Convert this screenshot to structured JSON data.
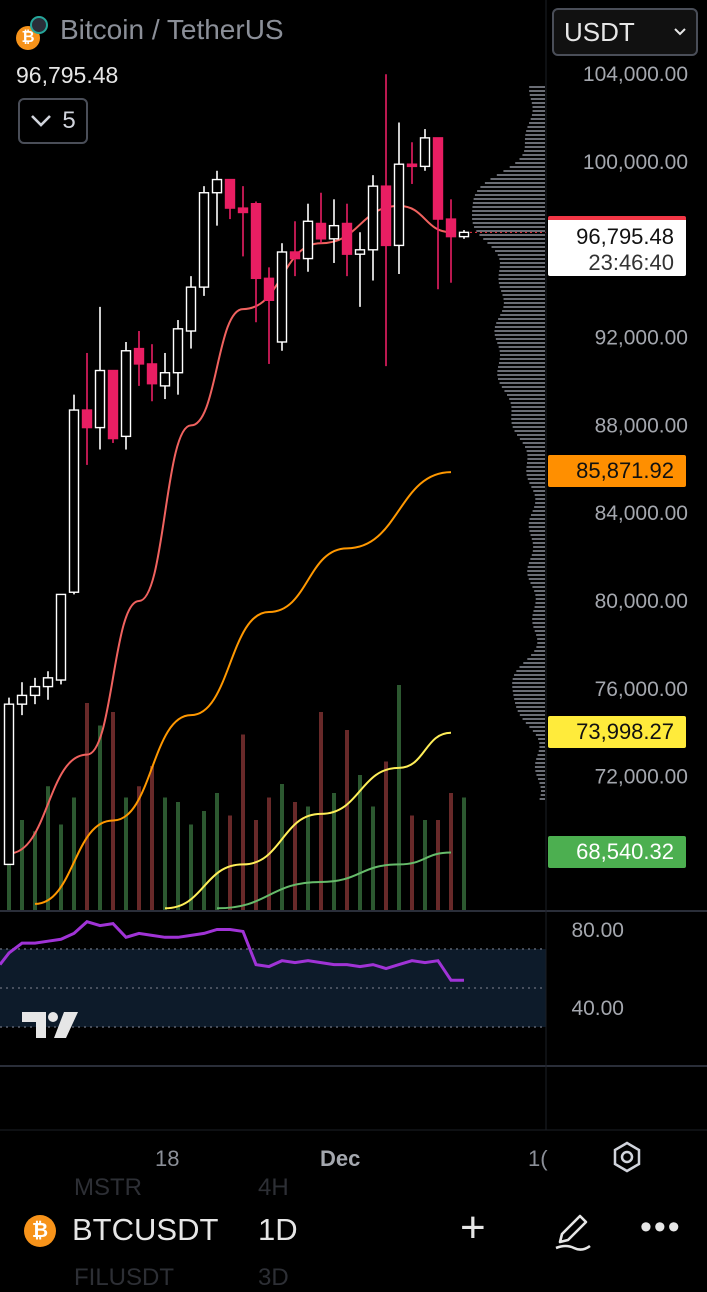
{
  "header": {
    "title": "Bitcoin / TetherUS",
    "last_price": "96,795.48",
    "collapse_count": "5",
    "currency": "USDT"
  },
  "price_tags": {
    "last": "96,795.48",
    "countdown": "23:46:40",
    "orange": "85,871.92",
    "yellow": "73,998.27",
    "green": "68,540.32"
  },
  "price_axis": {
    "ticks": [
      "104,000.00",
      "100,000.00",
      "92,000.00",
      "88,000.00",
      "84,000.00",
      "80,000.00",
      "76,000.00",
      "72,000.00"
    ]
  },
  "rsi_axis": {
    "ticks": [
      "80.00",
      "40.00"
    ]
  },
  "time_axis": {
    "labels": [
      "18",
      "Dec",
      "1("
    ]
  },
  "bottom_bar": {
    "symbol": "BTCUSDT",
    "interval": "1D",
    "ghost_symbol_1": "MSTR",
    "ghost_interval_1": "4H",
    "ghost_symbol_2": "FILUSDT",
    "ghost_interval_2": "3D"
  },
  "logo_text": "17",
  "colors": {
    "up": "#ffffff",
    "down": "#e91e63",
    "ma_red": "#f0625f",
    "ma_orange": "#ff9800",
    "ma_yellow": "#ffee58",
    "ma_green": "#66bb6a",
    "rsi": "#a033d6"
  },
  "chart_data": {
    "type": "candlestick",
    "interval": "1D",
    "ylim": [
      66000,
      104500
    ],
    "candles": [
      {
        "o": 68000,
        "h": 75600,
        "l": 68000,
        "c": 75300
      },
      {
        "o": 75300,
        "h": 76300,
        "l": 74800,
        "c": 75700
      },
      {
        "o": 75700,
        "h": 76500,
        "l": 75300,
        "c": 76100
      },
      {
        "o": 76100,
        "h": 76800,
        "l": 75500,
        "c": 76500
      },
      {
        "o": 76400,
        "h": 80300,
        "l": 76200,
        "c": 80300
      },
      {
        "o": 80400,
        "h": 89400,
        "l": 80300,
        "c": 88700
      },
      {
        "o": 88700,
        "h": 91300,
        "l": 86200,
        "c": 87900
      },
      {
        "o": 87900,
        "h": 93400,
        "l": 86900,
        "c": 90500
      },
      {
        "o": 90500,
        "h": 90500,
        "l": 87200,
        "c": 87400
      },
      {
        "o": 87500,
        "h": 91800,
        "l": 86900,
        "c": 91400
      },
      {
        "o": 91500,
        "h": 92300,
        "l": 89800,
        "c": 90800
      },
      {
        "o": 90800,
        "h": 91700,
        "l": 89100,
        "c": 89900
      },
      {
        "o": 89800,
        "h": 91300,
        "l": 89200,
        "c": 90400
      },
      {
        "o": 90400,
        "h": 92800,
        "l": 89400,
        "c": 92400
      },
      {
        "o": 92300,
        "h": 94800,
        "l": 91500,
        "c": 94300
      },
      {
        "o": 94300,
        "h": 98900,
        "l": 93900,
        "c": 98600
      },
      {
        "o": 98600,
        "h": 99600,
        "l": 97100,
        "c": 99200
      },
      {
        "o": 99200,
        "h": 99200,
        "l": 97400,
        "c": 97900
      },
      {
        "o": 97900,
        "h": 98900,
        "l": 95700,
        "c": 97700
      },
      {
        "o": 98100,
        "h": 98200,
        "l": 92700,
        "c": 94700
      },
      {
        "o": 94700,
        "h": 95200,
        "l": 90800,
        "c": 93700
      },
      {
        "o": 91800,
        "h": 96300,
        "l": 91400,
        "c": 95900
      },
      {
        "o": 95900,
        "h": 97300,
        "l": 94800,
        "c": 95600
      },
      {
        "o": 95600,
        "h": 98100,
        "l": 95000,
        "c": 97300
      },
      {
        "o": 97200,
        "h": 98600,
        "l": 96300,
        "c": 96500
      },
      {
        "o": 96500,
        "h": 98300,
        "l": 95400,
        "c": 97100
      },
      {
        "o": 97200,
        "h": 98100,
        "l": 94800,
        "c": 95800
      },
      {
        "o": 95800,
        "h": 96800,
        "l": 93400,
        "c": 96000
      },
      {
        "o": 96000,
        "h": 99400,
        "l": 94600,
        "c": 98900
      },
      {
        "o": 98900,
        "h": 104000,
        "l": 90700,
        "c": 96200
      },
      {
        "o": 96200,
        "h": 101800,
        "l": 94900,
        "c": 99900
      },
      {
        "o": 99900,
        "h": 100900,
        "l": 99000,
        "c": 99800
      },
      {
        "o": 99800,
        "h": 101500,
        "l": 99600,
        "c": 101100
      },
      {
        "o": 101100,
        "h": 101100,
        "l": 94200,
        "c": 97400
      },
      {
        "o": 97400,
        "h": 98300,
        "l": 94500,
        "c": 96600
      },
      {
        "o": 96600,
        "h": 96900,
        "l": 96500,
        "c": 96795.48
      }
    ],
    "volumes": [
      30,
      40,
      35,
      55,
      38,
      50,
      92,
      82,
      88,
      50,
      55,
      64,
      50,
      48,
      38,
      44,
      52,
      42,
      78,
      40,
      50,
      56,
      48,
      46,
      88,
      52,
      80,
      60,
      46,
      66,
      100,
      42,
      40,
      40,
      52,
      50
    ],
    "rsi": [
      68,
      73,
      73,
      74,
      75,
      78,
      84,
      82,
      83,
      76,
      78,
      77,
      76,
      76,
      77,
      78,
      80,
      80,
      79,
      62,
      61,
      64,
      63,
      64,
      63,
      62,
      62,
      61,
      62,
      60,
      62,
      64,
      63,
      64,
      54,
      54
    ],
    "indicators": [
      {
        "name": "ma_red",
        "points": [
          [
            0,
            68500
          ],
          [
            6,
            73000
          ],
          [
            10,
            80000
          ],
          [
            14,
            88000
          ],
          [
            18,
            93300
          ],
          [
            24,
            96300
          ],
          [
            30,
            98000
          ],
          [
            34,
            96800
          ]
        ]
      },
      {
        "name": "ma_orange",
        "points": [
          [
            2,
            66200
          ],
          [
            8,
            70000
          ],
          [
            14,
            74800
          ],
          [
            20,
            79500
          ],
          [
            26,
            82400
          ],
          [
            34,
            85872
          ]
        ]
      },
      {
        "name": "ma_yellow",
        "points": [
          [
            12,
            66000
          ],
          [
            18,
            68000
          ],
          [
            24,
            70300
          ],
          [
            30,
            72400
          ],
          [
            34,
            73998
          ]
        ]
      },
      {
        "name": "ma_green",
        "points": [
          [
            16,
            66000
          ],
          [
            24,
            67200
          ],
          [
            30,
            68000
          ],
          [
            34,
            68540
          ]
        ]
      }
    ],
    "rsi_levels": [
      70,
      50,
      30
    ]
  }
}
